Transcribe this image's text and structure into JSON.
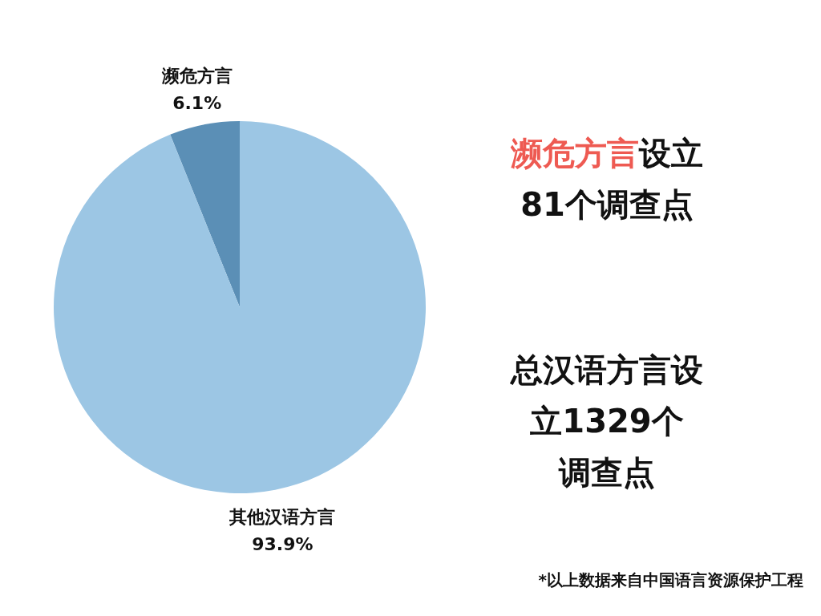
{
  "chart_data": {
    "type": "pie",
    "categories": [
      "濒危方言",
      "其他汉语方言"
    ],
    "values": [
      6.1,
      93.9
    ],
    "colors": [
      "#5b8fb6",
      "#9cc6e4"
    ],
    "value_labels": [
      "6.1%",
      "93.9%"
    ],
    "annotations": [
      "濒危方言设立81个调查点",
      "总汉语方言设立1329个调查点",
      "*以上数据来自中国语言资源保护工程"
    ]
  }
}
